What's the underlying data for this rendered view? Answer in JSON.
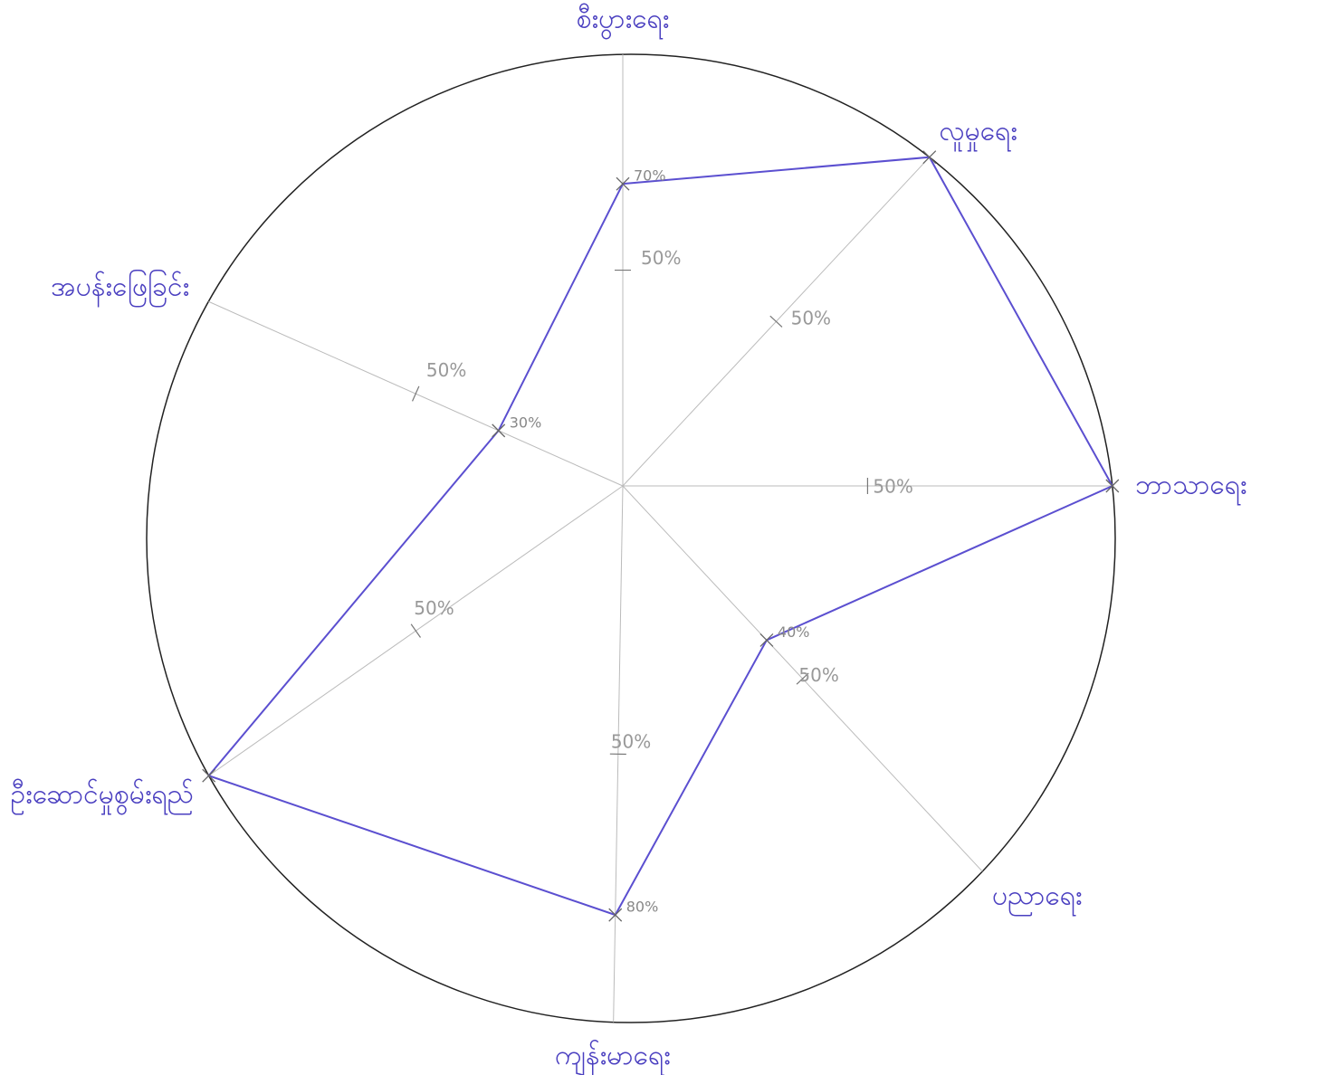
{
  "chart_data": {
    "type": "radar",
    "categories": [
      "စီးပွားရေး",
      "လူမှုရေး",
      "ဘာသာရေး",
      "ပညာရေး",
      "ကျန်းမာရေး",
      "ဦးဆောင်မှုစွမ်းရည်",
      "အပန်းဖြေခြင်း"
    ],
    "values": [
      70,
      100,
      100,
      40,
      80,
      100,
      30
    ],
    "value_labels": [
      "70%",
      null,
      null,
      "40%",
      "80%",
      null,
      "30%"
    ],
    "color": "#5b4fd0",
    "rlim": [
      0,
      100
    ],
    "rticks": [
      {
        "value": 50,
        "label": "50%"
      }
    ]
  }
}
